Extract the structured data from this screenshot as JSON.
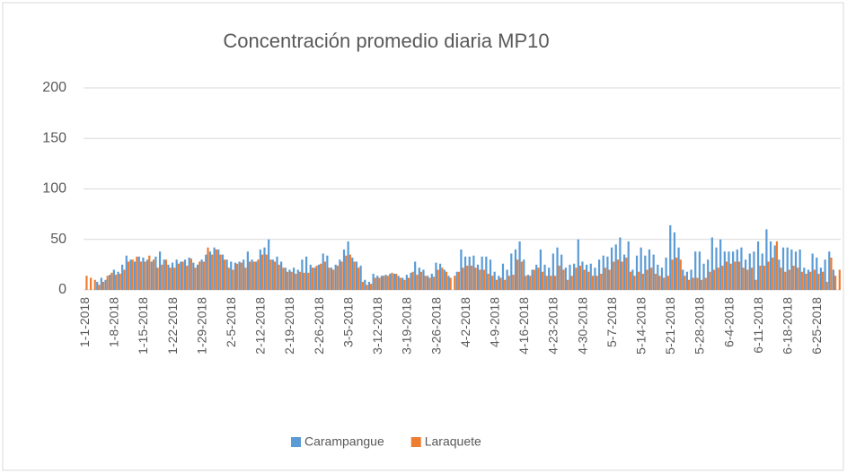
{
  "chart_data": {
    "type": "bar",
    "title": "Concentración promedio diaria MP10",
    "categories": [
      "1-1-2018",
      null,
      null,
      null,
      null,
      null,
      null,
      "1-8-2018",
      null,
      null,
      null,
      null,
      null,
      null,
      "1-15-2018",
      null,
      null,
      null,
      null,
      null,
      null,
      "1-22-2018",
      null,
      null,
      null,
      null,
      null,
      null,
      "1-29-2018",
      null,
      null,
      null,
      null,
      null,
      null,
      "2-5-2018",
      null,
      null,
      null,
      null,
      null,
      null,
      "2-12-2018",
      null,
      null,
      null,
      null,
      null,
      null,
      "2-19-2018",
      null,
      null,
      null,
      null,
      null,
      null,
      "2-26-2018",
      null,
      null,
      null,
      null,
      null,
      null,
      "3-5-2018",
      null,
      null,
      null,
      null,
      null,
      null,
      "3-12-2018",
      null,
      null,
      null,
      null,
      null,
      null,
      "3-19-2018",
      null,
      null,
      null,
      null,
      null,
      null,
      "3-26-2018",
      null,
      null,
      null,
      null,
      null,
      null,
      "4-2-2018",
      null,
      null,
      null,
      null,
      null,
      null,
      "4-9-2018",
      null,
      null,
      null,
      null,
      null,
      null,
      "4-16-2018",
      null,
      null,
      null,
      null,
      null,
      null,
      "4-23-2018",
      null,
      null,
      null,
      null,
      null,
      null,
      "4-30-2018",
      null,
      null,
      null,
      null,
      null,
      null,
      "5-7-2018",
      null,
      null,
      null,
      null,
      null,
      null,
      "5-14-2018",
      null,
      null,
      null,
      null,
      null,
      null,
      "5-21-2018",
      null,
      null,
      null,
      null,
      null,
      null,
      "5-28-2018",
      null,
      null,
      null,
      null,
      null,
      null,
      "6-4-2018",
      null,
      null,
      null,
      null,
      null,
      null,
      "6-11-2018",
      null,
      null,
      null,
      null,
      null,
      null,
      "6-18-2018",
      null,
      null,
      null,
      null,
      null,
      null,
      "6-25-2018",
      null,
      null,
      null,
      null,
      null
    ],
    "series": [
      {
        "name": "Carampangue",
        "color": "#5b9bd5",
        "values": [
          null,
          null,
          null,
          8,
          12,
          10,
          15,
          20,
          18,
          25,
          34,
          30,
          28,
          33,
          32,
          30,
          28,
          33,
          38,
          30,
          25,
          27,
          30,
          28,
          30,
          32,
          27,
          25,
          30,
          35,
          38,
          42,
          40,
          35,
          30,
          28,
          27,
          28,
          30,
          38,
          30,
          28,
          40,
          42,
          50,
          30,
          33,
          28,
          22,
          20,
          22,
          20,
          30,
          33,
          25,
          22,
          25,
          36,
          34,
          22,
          25,
          30,
          40,
          48,
          32,
          28,
          24,
          10,
          8,
          16,
          14,
          14,
          15,
          16,
          16,
          14,
          12,
          15,
          17,
          28,
          22,
          20,
          14,
          16,
          27,
          26,
          20,
          14,
          null,
          18,
          40,
          33,
          33,
          34,
          25,
          33,
          33,
          30,
          18,
          14,
          26,
          20,
          36,
          40,
          48,
          30,
          15,
          20,
          25,
          40,
          25,
          22,
          36,
          42,
          35,
          22,
          25,
          26,
          50,
          28,
          25,
          26,
          22,
          30,
          34,
          33,
          42,
          45,
          52,
          35,
          48,
          20,
          34,
          42,
          34,
          40,
          35,
          25,
          22,
          32,
          64,
          57,
          42,
          20,
          18,
          20,
          38,
          38,
          26,
          30,
          52,
          42,
          50,
          38,
          38,
          38,
          40,
          42,
          30,
          36,
          38,
          48,
          36,
          60,
          48,
          44,
          30,
          42,
          42,
          40,
          38,
          40,
          22,
          20,
          36,
          32,
          22,
          30,
          38,
          20,
          null
        ]
      },
      {
        "name": "Laraquete",
        "color": "#ed7d31",
        "values": [
          14,
          12,
          10,
          5,
          8,
          14,
          17,
          15,
          16,
          20,
          28,
          30,
          33,
          28,
          28,
          34,
          30,
          22,
          25,
          30,
          22,
          22,
          26,
          28,
          24,
          31,
          22,
          28,
          28,
          42,
          35,
          40,
          35,
          30,
          22,
          20,
          26,
          27,
          22,
          28,
          28,
          30,
          35,
          35,
          30,
          28,
          25,
          22,
          18,
          18,
          16,
          18,
          17,
          17,
          22,
          24,
          26,
          28,
          22,
          20,
          24,
          28,
          34,
          35,
          28,
          22,
          8,
          5,
          6,
          12,
          12,
          14,
          14,
          17,
          16,
          12,
          10,
          12,
          18,
          15,
          18,
          14,
          12,
          13,
          20,
          22,
          18,
          12,
          14,
          18,
          22,
          24,
          24,
          22,
          20,
          20,
          16,
          14,
          10,
          12,
          10,
          14,
          15,
          30,
          28,
          14,
          14,
          20,
          22,
          18,
          14,
          14,
          14,
          24,
          20,
          10,
          14,
          22,
          24,
          20,
          18,
          14,
          14,
          16,
          22,
          20,
          28,
          30,
          28,
          32,
          18,
          14,
          18,
          16,
          20,
          22,
          16,
          14,
          12,
          14,
          30,
          32,
          30,
          14,
          10,
          12,
          12,
          10,
          12,
          18,
          20,
          22,
          24,
          28,
          26,
          28,
          28,
          22,
          20,
          22,
          10,
          24,
          24,
          28,
          32,
          48,
          22,
          18,
          20,
          24,
          22,
          18,
          16,
          18,
          20,
          16,
          18,
          8,
          32,
          14,
          20
        ]
      }
    ],
    "ylim": [
      0,
      200
    ],
    "yticks": [
      0,
      50,
      100,
      150,
      200
    ],
    "grid": true,
    "legend": "bottom"
  }
}
